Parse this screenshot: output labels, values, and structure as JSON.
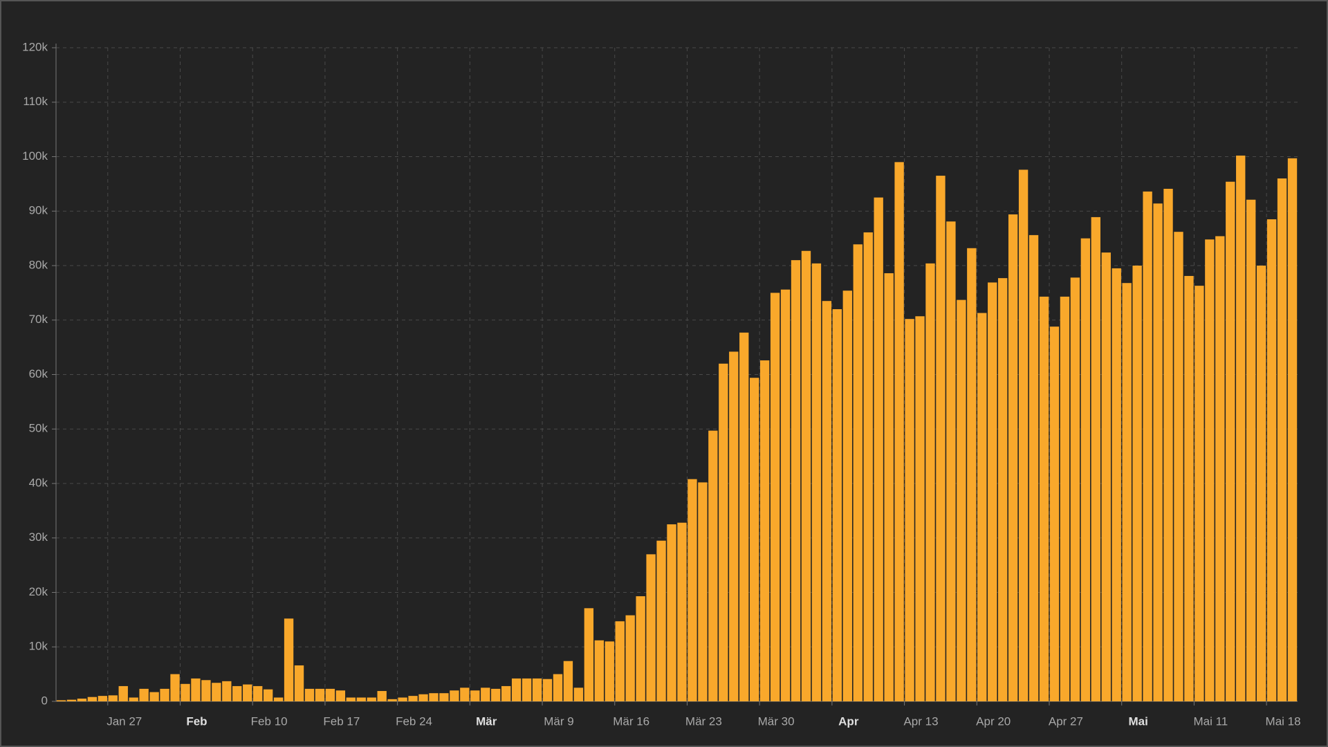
{
  "chart_data": {
    "type": "bar",
    "values": [
      200,
      300,
      500,
      800,
      1000,
      1100,
      2800,
      700,
      2300,
      1700,
      2300,
      5000,
      3200,
      4200,
      3900,
      3400,
      3700,
      2800,
      3100,
      2800,
      2200,
      700,
      15200,
      6600,
      2300,
      2300,
      2300,
      2000,
      700,
      700,
      700,
      1900,
      400,
      700,
      1000,
      1300,
      1500,
      1500,
      2000,
      2500,
      2000,
      2500,
      2300,
      2800,
      4200,
      4200,
      4200,
      4100,
      5000,
      7400,
      2500,
      17100,
      11200,
      11000,
      14700,
      15800,
      19300,
      27000,
      29500,
      32500,
      32800,
      40800,
      40200,
      49700,
      62000,
      64200,
      67700,
      59400,
      62600,
      75000,
      75600,
      81000,
      82700,
      80400,
      73500,
      72000,
      75400,
      83900,
      86100,
      92500,
      78600,
      99000,
      70200,
      70700,
      80400,
      96500,
      88100,
      73700,
      83200,
      71300,
      76900,
      77700,
      89400,
      97600,
      85600,
      74300,
      68800,
      74300,
      77800,
      85000,
      88900,
      82400,
      79500,
      76800,
      80000,
      93600,
      91400,
      94100,
      86200,
      78100,
      76300,
      84800,
      85400,
      95400,
      100200,
      92100,
      80000,
      88500,
      96000,
      99700
    ],
    "color": "#f9a82b",
    "xlim": [
      0,
      120
    ],
    "xticks": [
      {
        "value": 5,
        "label": "Jan 27"
      },
      {
        "value": 12,
        "label": "Feb"
      },
      {
        "value": 19,
        "label": "Feb 10"
      },
      {
        "value": 26,
        "label": "Feb 17"
      },
      {
        "value": 33,
        "label": "Feb 24"
      },
      {
        "value": 40,
        "label": "Mär"
      },
      {
        "value": 47,
        "label": "Mär 9"
      },
      {
        "value": 54,
        "label": "Mär 16"
      },
      {
        "value": 61,
        "label": "Mär 23"
      },
      {
        "value": 68,
        "label": "Mär 30"
      },
      {
        "value": 75,
        "label": "Apr"
      },
      {
        "value": 82,
        "label": "Apr 13"
      },
      {
        "value": 89,
        "label": "Apr 20"
      },
      {
        "value": 96,
        "label": "Apr 27"
      },
      {
        "value": 103,
        "label": "Mai"
      },
      {
        "value": 110,
        "label": "Mai 11"
      },
      {
        "value": 117,
        "label": "Mai 18"
      }
    ],
    "ylim": [
      0,
      120000
    ],
    "yticks": [
      0,
      {
        "value": 10000,
        "label": "10k"
      },
      {
        "value": 20000,
        "label": "20k"
      },
      {
        "value": 30000,
        "label": "30k"
      },
      {
        "value": 40000,
        "label": "40k"
      },
      {
        "value": 50000,
        "label": "50k"
      },
      {
        "value": 60000,
        "label": "60k"
      },
      {
        "value": 70000,
        "label": "70k"
      },
      {
        "value": 80000,
        "label": "80k"
      },
      {
        "value": 90000,
        "label": "90k"
      },
      {
        "value": 100000,
        "label": "100k"
      },
      {
        "value": 110000,
        "label": "110k"
      },
      {
        "value": 120000,
        "label": "120k"
      }
    ],
    "grid": true
  }
}
